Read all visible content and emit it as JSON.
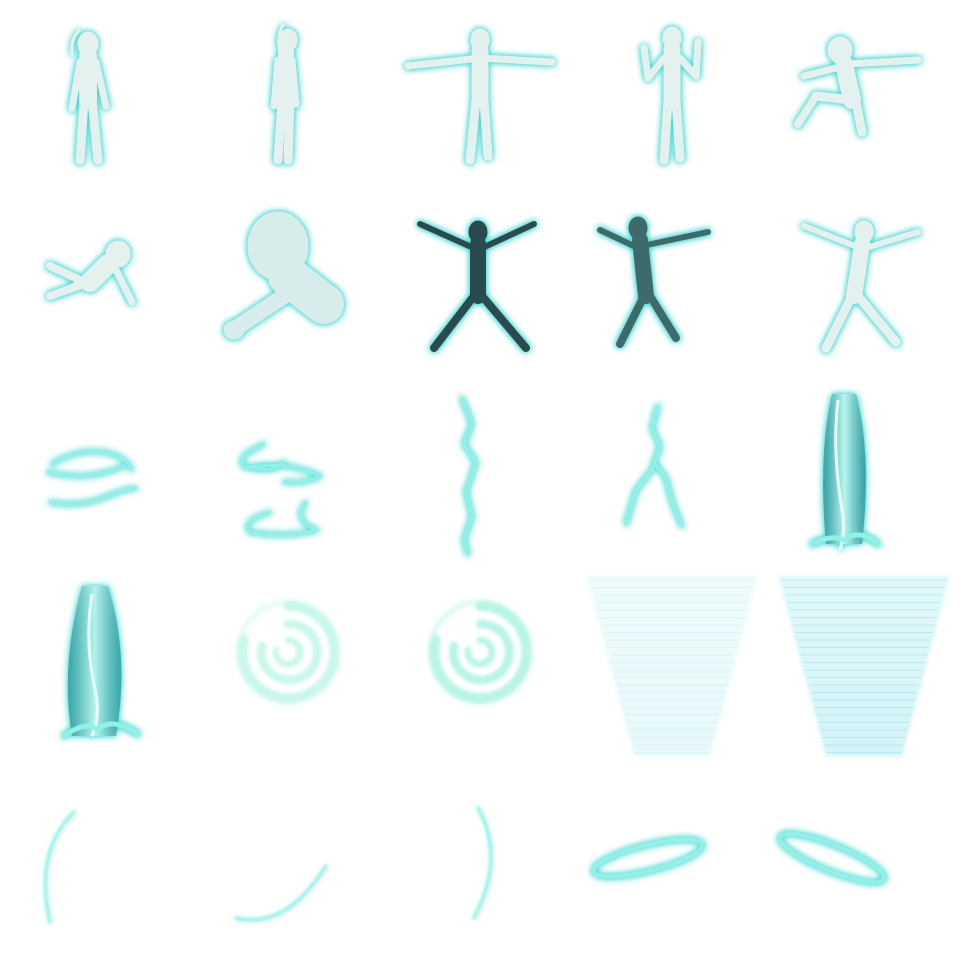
{
  "sheet": {
    "background": "#ffffff",
    "glow_color": "#3fd6cf",
    "body_color": "#e4f1ef",
    "dark_color": "#0d2b2c",
    "energy_color": "#8ff2e6",
    "swirl_color": "#b9f5e6",
    "cone_color": "#9fe7ec",
    "rows": 5,
    "columns": 5
  },
  "frames": [
    {
      "row": 0,
      "col": 0,
      "kind": "figure",
      "pose": "stand",
      "icon": "ghost-standing-icon"
    },
    {
      "row": 0,
      "col": 1,
      "kind": "figure",
      "pose": "stand-turned",
      "icon": "ghost-standing-side-icon"
    },
    {
      "row": 0,
      "col": 2,
      "kind": "figure",
      "pose": "t-pose",
      "icon": "ghost-t-pose-icon"
    },
    {
      "row": 0,
      "col": 3,
      "kind": "figure",
      "pose": "flex",
      "icon": "ghost-flexing-icon"
    },
    {
      "row": 0,
      "col": 4,
      "kind": "figure",
      "pose": "leap",
      "icon": "ghost-leaping-icon"
    },
    {
      "row": 1,
      "col": 0,
      "kind": "figure",
      "pose": "tumble",
      "icon": "ghost-tumbling-icon"
    },
    {
      "row": 1,
      "col": 1,
      "kind": "figure",
      "pose": "reach-closeup",
      "icon": "ghost-reaching-icon"
    },
    {
      "row": 1,
      "col": 2,
      "kind": "figure",
      "pose": "star-dark",
      "icon": "ghost-star-pose-dark-icon"
    },
    {
      "row": 1,
      "col": 3,
      "kind": "figure",
      "pose": "star-side",
      "icon": "ghost-star-pose-side-icon"
    },
    {
      "row": 1,
      "col": 4,
      "kind": "figure",
      "pose": "star-light",
      "icon": "ghost-star-pose-light-icon"
    },
    {
      "row": 2,
      "col": 0,
      "kind": "effect",
      "effect": "wisps-pair",
      "icon": "energy-wisps-icon"
    },
    {
      "row": 2,
      "col": 1,
      "kind": "effect",
      "effect": "wisps-triple",
      "icon": "energy-wisps-triple-icon"
    },
    {
      "row": 2,
      "col": 2,
      "kind": "effect",
      "effect": "bolt-single",
      "icon": "lightning-bolt-icon"
    },
    {
      "row": 2,
      "col": 3,
      "kind": "effect",
      "effect": "bolt-forked",
      "icon": "lightning-forked-icon"
    },
    {
      "row": 2,
      "col": 4,
      "kind": "effect",
      "effect": "pillar-splash",
      "icon": "energy-pillar-icon"
    },
    {
      "row": 3,
      "col": 0,
      "kind": "effect",
      "effect": "pillar-wide",
      "icon": "energy-pillar-wide-icon"
    },
    {
      "row": 3,
      "col": 1,
      "kind": "effect",
      "effect": "swirl-faint",
      "icon": "vortex-swirl-faint-icon"
    },
    {
      "row": 3,
      "col": 2,
      "kind": "effect",
      "effect": "swirl-bright",
      "icon": "vortex-swirl-icon"
    },
    {
      "row": 3,
      "col": 3,
      "kind": "effect",
      "effect": "funnel-faint",
      "icon": "tornado-funnel-faint-icon"
    },
    {
      "row": 3,
      "col": 4,
      "kind": "effect",
      "effect": "funnel-bright",
      "icon": "tornado-funnel-icon"
    },
    {
      "row": 4,
      "col": 0,
      "kind": "effect",
      "effect": "arc-left",
      "icon": "energy-arc-left-icon"
    },
    {
      "row": 4,
      "col": 1,
      "kind": "effect",
      "effect": "arc-bottom",
      "icon": "energy-arc-bottom-icon"
    },
    {
      "row": 4,
      "col": 2,
      "kind": "effect",
      "effect": "arc-right",
      "icon": "energy-arc-right-icon"
    },
    {
      "row": 4,
      "col": 3,
      "kind": "effect",
      "effect": "ring-tilted",
      "icon": "energy-ring-icon"
    },
    {
      "row": 4,
      "col": 4,
      "kind": "effect",
      "effect": "ring-tilted-alt",
      "icon": "energy-ring-alt-icon"
    }
  ]
}
